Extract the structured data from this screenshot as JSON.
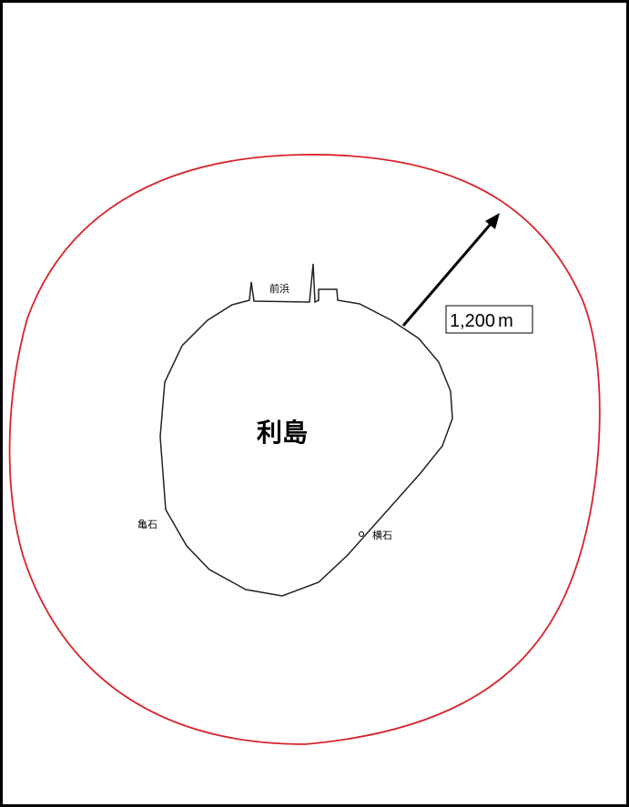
{
  "map": {
    "island_name": "利島",
    "places": [
      "前浜",
      "亀石",
      "横石"
    ],
    "radius_label": {
      "value": "1,200",
      "unit": "m"
    }
  }
}
